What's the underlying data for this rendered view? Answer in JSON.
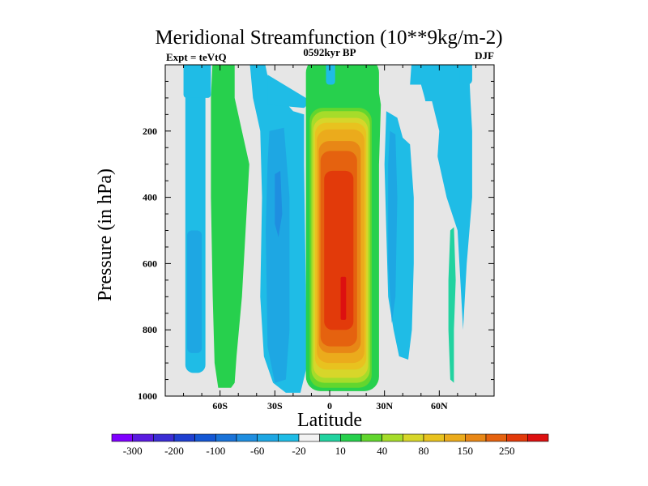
{
  "chart_data": {
    "type": "contour",
    "title": "Meridional Streamfunction (10**9kg/m-2)",
    "subtitle_left": "Expt = teVtQ",
    "subtitle_center": "0592kyr BP",
    "subtitle_right": "DJF",
    "xlabel": "Latitude",
    "ylabel": "Pressure (in hPa)",
    "xlim": [
      -90,
      90
    ],
    "ylim": [
      1000,
      0
    ],
    "x_ticks": [
      {
        "value": -60,
        "label": "60S"
      },
      {
        "value": -30,
        "label": "30S"
      },
      {
        "value": 0,
        "label": "0"
      },
      {
        "value": 30,
        "label": "30N"
      },
      {
        "value": 60,
        "label": "60N"
      }
    ],
    "y_ticks": [
      {
        "value": 200,
        "label": "200"
      },
      {
        "value": 400,
        "label": "400"
      },
      {
        "value": 600,
        "label": "600"
      },
      {
        "value": 800,
        "label": "800"
      },
      {
        "value": 1000,
        "label": "1000"
      }
    ],
    "background_color": "#e6e6e6",
    "colorbar": {
      "colors": [
        "#7f00ff",
        "#5a1be0",
        "#3b2dd4",
        "#1f3fd0",
        "#1457d4",
        "#1a73d8",
        "#1f8ee0",
        "#1ea7e3",
        "#1fbce6",
        "#f2f2f2",
        "#22d3a0",
        "#27d04d",
        "#62d62e",
        "#a6dc2a",
        "#d7d62a",
        "#e8c21f",
        "#ebab1c",
        "#e88716",
        "#e5620f",
        "#e23a0a",
        "#dd1010"
      ],
      "labels": [
        {
          "after_box": 1,
          "text": "-300"
        },
        {
          "after_box": 3,
          "text": "-200"
        },
        {
          "after_box": 5,
          "text": "-100"
        },
        {
          "after_box": 7,
          "text": "-60"
        },
        {
          "after_box": 9,
          "text": "-20"
        },
        {
          "after_box": 11,
          "text": "10"
        },
        {
          "after_box": 13,
          "text": "40"
        },
        {
          "after_box": 15,
          "text": "80"
        },
        {
          "after_box": 17,
          "text": "150"
        },
        {
          "after_box": 19,
          "text": "250"
        }
      ]
    },
    "cells": [
      {
        "name": "cell-far-south",
        "color": "#1fbce6",
        "lat": -75,
        "p_top": 0,
        "p_bottom": 970
      },
      {
        "name": "cell-southern-green",
        "color": "#27d04d",
        "lat": -58,
        "p_top": 0,
        "p_bottom": 975
      },
      {
        "name": "cell-southern-blue",
        "color": "#1fbce6",
        "lat": -29,
        "p_top": 120,
        "p_bottom": 990
      },
      {
        "name": "cell-southern-inner-blue",
        "color": "#1a73d8",
        "lat": -28,
        "p_top": 300,
        "p_bottom": 520
      },
      {
        "name": "cell-hadley-north",
        "color": "#e23a0a",
        "lat": 7,
        "p_top": 50,
        "p_bottom": 990
      },
      {
        "name": "cell-northern-blue",
        "color": "#1fbce6",
        "lat": 40,
        "p_top": 150,
        "p_bottom": 900
      },
      {
        "name": "cell-northern-green",
        "color": "#22d3a0",
        "lat": 68,
        "p_top": 500,
        "p_bottom": 960
      }
    ]
  }
}
